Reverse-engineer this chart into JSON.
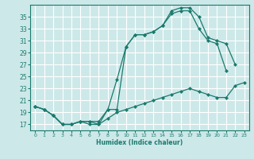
{
  "xlabel": "Humidex (Indice chaleur)",
  "bg_color": "#cde8e8",
  "grid_color": "#ffffff",
  "line_color": "#1a7a6e",
  "xlim": [
    -0.5,
    23.5
  ],
  "ylim": [
    16.0,
    37.0
  ],
  "xticks": [
    0,
    1,
    2,
    3,
    4,
    5,
    6,
    7,
    8,
    9,
    10,
    11,
    12,
    13,
    14,
    15,
    16,
    17,
    18,
    19,
    20,
    21,
    22,
    23
  ],
  "yticks": [
    17,
    19,
    21,
    23,
    25,
    27,
    29,
    31,
    33,
    35
  ],
  "line1_y": [
    20,
    19.5,
    18.5,
    17,
    17,
    17.5,
    17.5,
    17.5,
    19.5,
    24.5,
    30,
    32,
    32,
    32.5,
    33.5,
    36,
    36.5,
    36.5,
    35,
    31.5,
    31,
    30.5,
    27,
    null
  ],
  "line2_y": [
    20,
    19.5,
    18.5,
    17,
    17,
    17.5,
    17.5,
    17.0,
    19.5,
    19.5,
    30,
    32,
    32,
    32.5,
    33.5,
    35.5,
    36,
    36,
    33,
    31,
    30.5,
    26,
    null,
    null
  ],
  "line3_y": [
    20,
    19.5,
    18.5,
    17,
    17,
    17.5,
    17,
    17,
    18,
    19,
    19.5,
    20,
    20.5,
    21,
    21.5,
    22,
    22.5,
    23,
    22.5,
    22,
    21.5,
    21.5,
    23.5,
    24
  ]
}
